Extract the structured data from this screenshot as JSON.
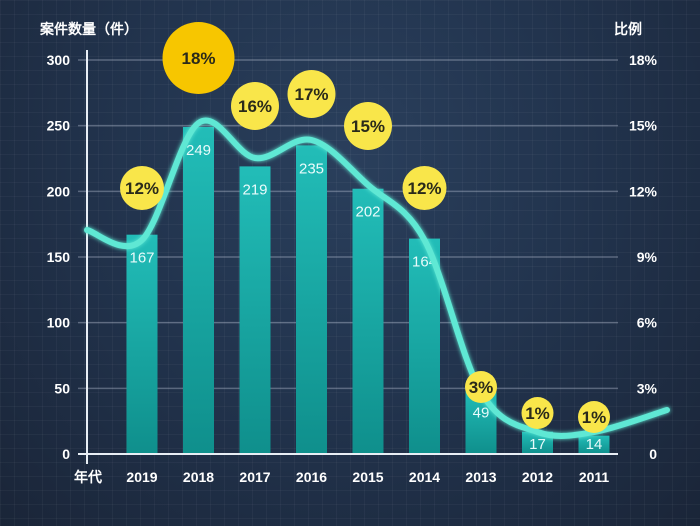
{
  "chart_data": {
    "type": "bar",
    "title": "",
    "xlabel": "年代",
    "ylabel": "案件数量（件）",
    "y2label": "比例",
    "categories": [
      "2019",
      "2018",
      "2017",
      "2016",
      "2015",
      "2014",
      "2013",
      "2012",
      "2011"
    ],
    "ylim": [
      0,
      300
    ],
    "yticks": [
      "0",
      "50",
      "100",
      "150",
      "200",
      "250",
      "300"
    ],
    "y2lim": [
      0,
      18
    ],
    "y2ticks": [
      "0",
      "3%",
      "6%",
      "9%",
      "12%",
      "15%",
      "18%"
    ],
    "grid": true,
    "series": [
      {
        "name": "案件数量",
        "type": "bar",
        "axis": "left",
        "values": [
          167,
          249,
          219,
          235,
          202,
          164,
          49,
          17,
          14
        ],
        "color": "#1fb3b0"
      },
      {
        "name": "比例",
        "type": "line",
        "axis": "right",
        "values": [
          12,
          18,
          16,
          17,
          15,
          12,
          3,
          1,
          1
        ],
        "labels": [
          "12%",
          "18%",
          "16%",
          "17%",
          "15%",
          "12%",
          "3%",
          "1%",
          "1%"
        ],
        "color": "#5ee8d4",
        "highlight_color": "#f7c600",
        "bubble_color": "#f9e64a"
      }
    ]
  }
}
